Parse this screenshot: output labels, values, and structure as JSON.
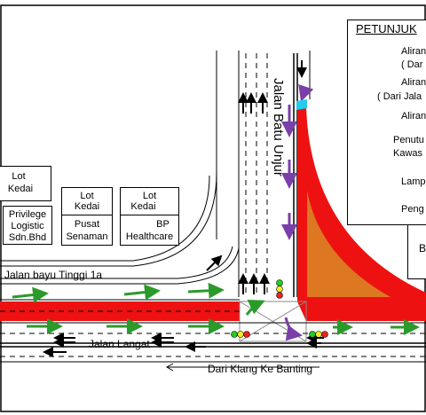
{
  "roads": {
    "batu_unjur": "Jalan Batu Unjur",
    "bayu_tinggi": "Jalan bayu Tinggi 1a",
    "langat": "Jalan Langat",
    "klang_banting": "Dari Klang Ke Banting"
  },
  "buildings": [
    {
      "id": "lot-kedai-1",
      "lines": [
        "Lot",
        "Kedai"
      ]
    },
    {
      "id": "privilege",
      "lines": [
        "Privilege",
        "Logistic",
        "Sdn.Bhd"
      ]
    },
    {
      "id": "lot-kedai-2",
      "lines": [
        "Lot",
        "Kedai"
      ]
    },
    {
      "id": "pusat",
      "lines": [
        "Pusat",
        "Senaman"
      ]
    },
    {
      "id": "lot-kedai-3",
      "lines": [
        "Lot",
        "Kedai"
      ]
    },
    {
      "id": "bp",
      "lines": [
        "BP",
        "Healthcare"
      ]
    },
    {
      "id": "right-bldg",
      "lines": [
        "B"
      ]
    }
  ],
  "legend": {
    "title": "PETUNJUK",
    "items": [
      {
        "symbol": "green-arrow",
        "text": "Aliran",
        "sub": "( Dar"
      },
      {
        "symbol": "purple-arrow",
        "text": "Aliran",
        "sub": "( Dari Jala"
      },
      {
        "symbol": "black-arrow",
        "text": "Aliran",
        "sub": ""
      },
      {
        "symbol": "red-area",
        "text": "Penutu",
        "sub": ""
      },
      {
        "symbol": "orange-area",
        "text": "Kawas",
        "sub": ""
      },
      {
        "symbol": "traffic-light",
        "text": "Lamp",
        "sub": ""
      },
      {
        "symbol": "flag",
        "text": "Peng",
        "sub": ""
      }
    ]
  },
  "colors": {
    "closure": "#ee1111",
    "area": "#dd7722",
    "flow_green": "#2a9a2a",
    "flow_purple": "#7a3fa8",
    "flow_black": "#000000",
    "light_green": "#22cc22",
    "light_yellow": "#eeee22",
    "light_red": "#ee2222",
    "flag": "#22ccee"
  }
}
